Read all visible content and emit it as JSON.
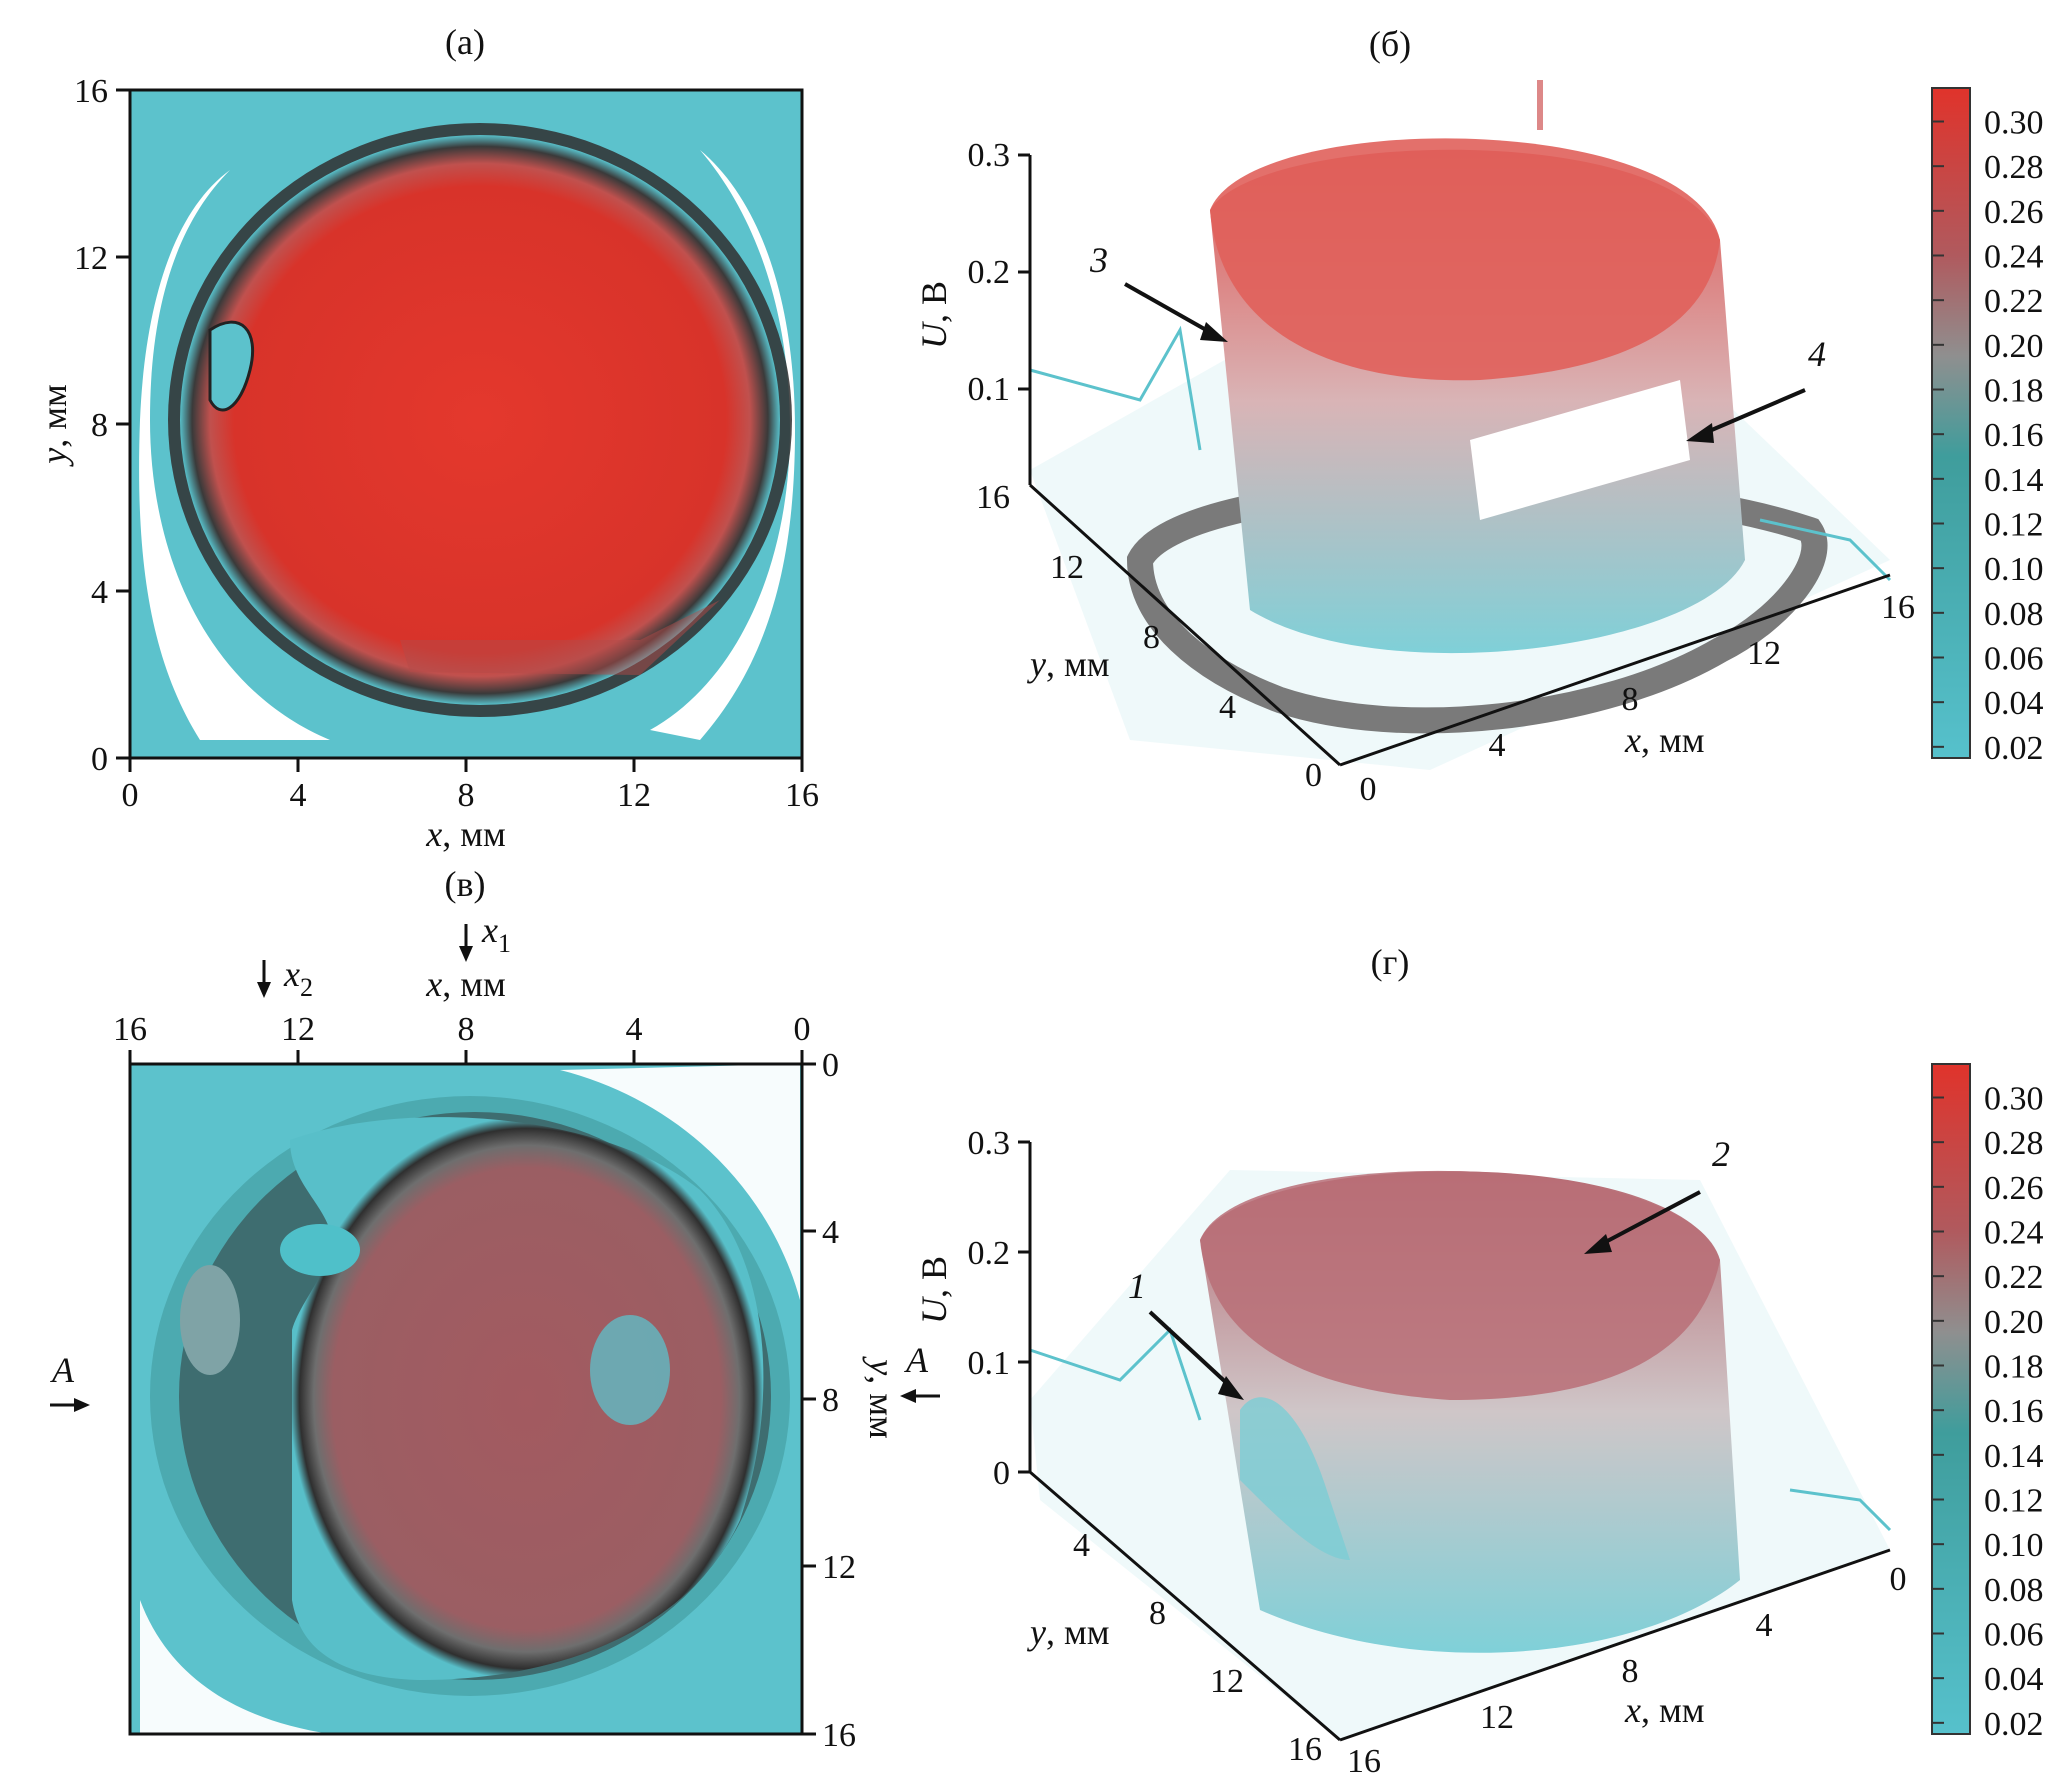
{
  "panels": {
    "a": {
      "label": "(а)",
      "xlabel_var": "x",
      "xlabel_unit": ", мм",
      "ylabel_var": "y",
      "ylabel_unit": ", мм",
      "x_ticks": [
        "0",
        "4",
        "8",
        "12",
        "16"
      ],
      "y_ticks": [
        "0",
        "4",
        "8",
        "12",
        "16"
      ]
    },
    "b": {
      "label": "(б)",
      "zlabel_var": "U",
      "zlabel_unit": ", В",
      "z_ticks": [
        "0.1",
        "0.2",
        "0.3"
      ],
      "y_ticks": [
        "16",
        "12",
        "8",
        "4",
        "0"
      ],
      "x_ticks": [
        "0",
        "4",
        "8",
        "12",
        "16"
      ],
      "xlabel_var": "x",
      "xlabel_unit": ", мм",
      "ylabel_var": "y",
      "ylabel_unit": ", мм",
      "annotations": [
        "3",
        "4"
      ]
    },
    "c": {
      "label": "(в)",
      "xlabel_var": "x",
      "xlabel_unit": ", мм",
      "ylabel_var": "y",
      "ylabel_unit": ", мм",
      "x_ticks": [
        "16",
        "12",
        "8",
        "4",
        "0"
      ],
      "y_ticks": [
        "0",
        "4",
        "8",
        "12",
        "16"
      ],
      "marker_x1_var": "x",
      "marker_x1_sub": "1",
      "marker_x2_var": "x",
      "marker_x2_sub": "2",
      "section_left": "A",
      "section_right": "A"
    },
    "d": {
      "label": "(г)",
      "zlabel_var": "U",
      "zlabel_unit": ", В",
      "z_ticks": [
        "0",
        "0.1",
        "0.2",
        "0.3"
      ],
      "y_ticks": [
        "4",
        "8",
        "12",
        "16"
      ],
      "x_ticks": [
        "16",
        "12",
        "8",
        "4",
        "0"
      ],
      "xlabel_var": "x",
      "xlabel_unit": ", мм",
      "ylabel_var": "y",
      "ylabel_unit": ", мм",
      "annotations": [
        "1",
        "2"
      ]
    }
  },
  "colorbar": {
    "ticks": [
      "0.30",
      "0.28",
      "0.26",
      "0.24",
      "0.22",
      "0.20",
      "0.18",
      "0.16",
      "0.14",
      "0.12",
      "0.10",
      "0.08",
      "0.06",
      "0.04",
      "0.02"
    ],
    "colors": {
      "high": "#e0332b",
      "mid": "#8f8f8f",
      "low": "#56c1cc"
    }
  },
  "chart_data": [
    {
      "type": "heatmap",
      "panel": "а",
      "xlabel": "x, мм",
      "ylabel": "y, мм",
      "xlim": [
        0,
        16
      ],
      "ylim": [
        0,
        16
      ],
      "value_range": [
        0.02,
        0.3
      ],
      "description_values": {
        "center_level": 0.3,
        "rim_level": 0.12,
        "background_level": 0.06
      }
    },
    {
      "type": "surface",
      "panel": "б",
      "xlabel": "x, мм",
      "ylabel": "y, мм",
      "zlabel": "U, В",
      "xlim": [
        0,
        16
      ],
      "ylim": [
        0,
        16
      ],
      "zlim": [
        0,
        0.3
      ],
      "plateau_level": 0.28,
      "background_level": 0.05
    },
    {
      "type": "heatmap",
      "panel": "в",
      "xlabel": "x, мм",
      "ylabel": "y, мм",
      "xlim": [
        16,
        0
      ],
      "ylim": [
        0,
        16
      ],
      "value_range": [
        0.02,
        0.3
      ],
      "description_values": {
        "center_level": 0.2,
        "rim_level": 0.1,
        "background_level": 0.06
      }
    },
    {
      "type": "surface",
      "panel": "г",
      "xlabel": "x, мм",
      "ylabel": "y, мм",
      "zlabel": "U, В",
      "xlim": [
        16,
        0
      ],
      "ylim": [
        0,
        16
      ],
      "zlim": [
        0,
        0.3
      ],
      "plateau_level": 0.22,
      "background_level": 0.05
    }
  ]
}
